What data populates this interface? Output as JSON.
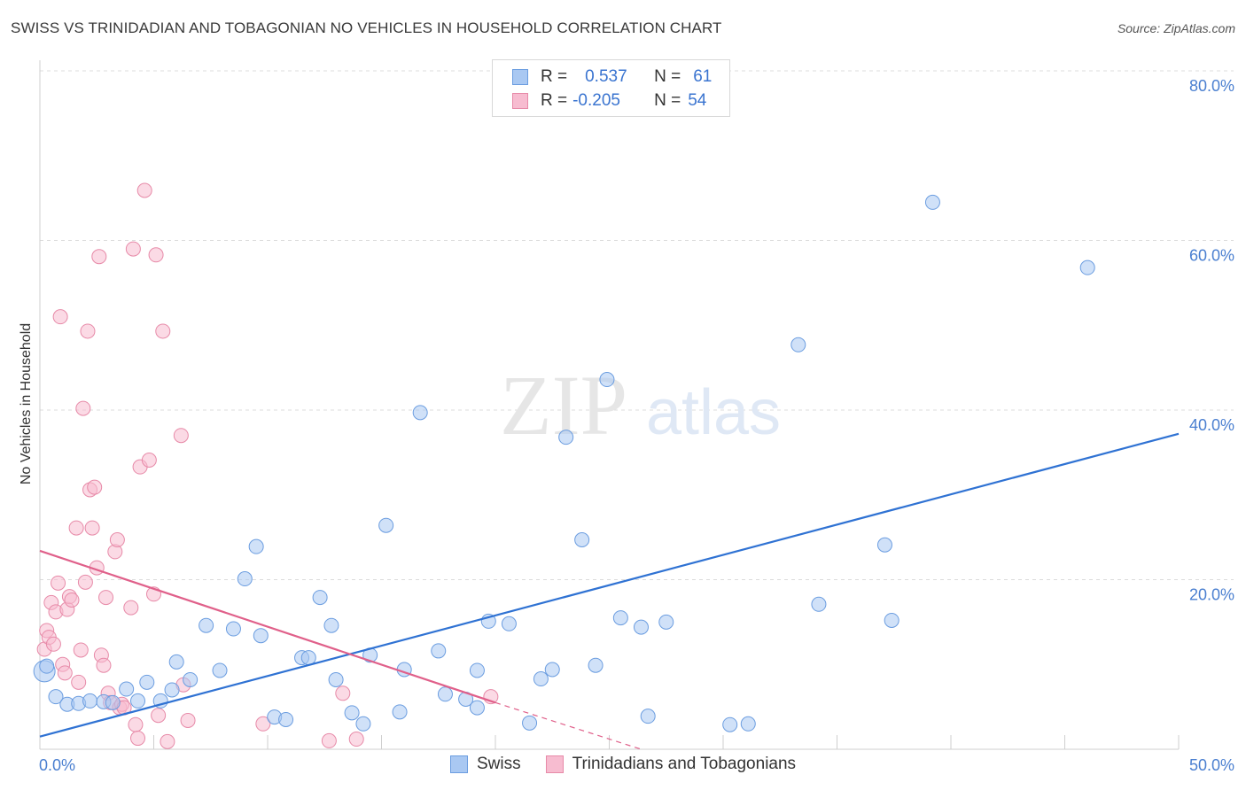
{
  "header": {
    "title": "SWISS VS TRINIDADIAN AND TOBAGONIAN NO VEHICLES IN HOUSEHOLD CORRELATION CHART",
    "source": "Source: ZipAtlas.com"
  },
  "watermark": {
    "zip": "ZIP",
    "atlas": "atlas"
  },
  "legend": {
    "rows": [
      {
        "r_label": "R =",
        "r_value": "0.537",
        "n_label": "N =",
        "n_value": "61",
        "color": "#a9c8f2",
        "border": "#6b9de0"
      },
      {
        "r_label": "R =",
        "r_value": "-0.205",
        "n_label": "N =",
        "n_value": "54",
        "color": "#f7bcd0",
        "border": "#e78aa8"
      }
    ]
  },
  "bottom_legend": {
    "swiss": "Swiss",
    "trini": "Trinidadians and Tobagonians"
  },
  "colors": {
    "swiss_fill": "#a9c8f2",
    "swiss_stroke": "#6b9de0",
    "swiss_line": "#2f72d3",
    "trini_fill": "#f7bcd0",
    "trini_stroke": "#e78aa8",
    "trini_line": "#e0608a",
    "grid": "#dcdcdc",
    "axis_text": "#4a7fd0"
  },
  "chart_data": {
    "type": "scatter",
    "title": "SWISS VS TRINIDADIAN AND TOBAGONIAN NO VEHICLES IN HOUSEHOLD CORRELATION CHART",
    "xlabel": "",
    "ylabel": "No Vehicles in Household",
    "xlim": [
      0,
      50
    ],
    "ylim": [
      0,
      80
    ],
    "x_tick_labels": [
      "0.0%",
      "50.0%"
    ],
    "y_ticks": [
      20,
      40,
      60,
      80
    ],
    "y_tick_labels": [
      "20.0%",
      "40.0%",
      "60.0%",
      "80.0%"
    ],
    "grid": true,
    "series": [
      {
        "name": "Swiss",
        "trend": {
          "x0": 0,
          "y0": 1.5,
          "x1": 50,
          "y1": 37.2
        },
        "points": [
          [
            0.2,
            9.2
          ],
          [
            0.7,
            6.2
          ],
          [
            1.2,
            5.3
          ],
          [
            1.7,
            5.4
          ],
          [
            2.2,
            5.7
          ],
          [
            2.8,
            5.6
          ],
          [
            3.2,
            5.5
          ],
          [
            3.8,
            7.1
          ],
          [
            4.3,
            5.7
          ],
          [
            4.7,
            7.9
          ],
          [
            5.3,
            5.7
          ],
          [
            5.8,
            7.0
          ],
          [
            6.0,
            10.3
          ],
          [
            6.6,
            8.2
          ],
          [
            7.3,
            14.6
          ],
          [
            7.9,
            9.3
          ],
          [
            8.5,
            14.2
          ],
          [
            9.0,
            20.1
          ],
          [
            9.5,
            23.9
          ],
          [
            9.7,
            13.4
          ],
          [
            10.3,
            3.8
          ],
          [
            10.8,
            3.5
          ],
          [
            11.5,
            10.8
          ],
          [
            11.8,
            10.8
          ],
          [
            12.3,
            17.9
          ],
          [
            12.8,
            14.6
          ],
          [
            13.0,
            8.2
          ],
          [
            13.7,
            4.3
          ],
          [
            14.2,
            3.0
          ],
          [
            14.5,
            11.1
          ],
          [
            15.2,
            26.4
          ],
          [
            15.8,
            4.4
          ],
          [
            16.0,
            9.4
          ],
          [
            16.7,
            39.7
          ],
          [
            17.5,
            11.6
          ],
          [
            17.8,
            6.5
          ],
          [
            18.7,
            5.9
          ],
          [
            19.2,
            4.9
          ],
          [
            19.2,
            9.3
          ],
          [
            19.7,
            15.1
          ],
          [
            20.6,
            14.8
          ],
          [
            21.5,
            3.1
          ],
          [
            22.0,
            8.3
          ],
          [
            22.5,
            9.4
          ],
          [
            23.1,
            36.8
          ],
          [
            23.8,
            24.7
          ],
          [
            24.4,
            9.9
          ],
          [
            24.9,
            43.6
          ],
          [
            25.5,
            15.5
          ],
          [
            26.4,
            14.4
          ],
          [
            26.7,
            3.9
          ],
          [
            27.5,
            15.0
          ],
          [
            30.3,
            2.9
          ],
          [
            31.1,
            3.0
          ],
          [
            33.3,
            47.7
          ],
          [
            34.2,
            17.1
          ],
          [
            37.1,
            24.1
          ],
          [
            37.4,
            15.2
          ],
          [
            39.2,
            64.5
          ],
          [
            46.0,
            56.8
          ],
          [
            0.3,
            9.8
          ]
        ]
      },
      {
        "name": "Trinidadians and Tobagonians",
        "trend": {
          "x0": 0,
          "y0": 23.4,
          "x1": 20,
          "y1": 5.5
        },
        "trend_dashed_to": {
          "x": 26.4,
          "y": -1.5
        },
        "points": [
          [
            0.2,
            11.8
          ],
          [
            0.3,
            14.0
          ],
          [
            0.4,
            13.2
          ],
          [
            0.5,
            17.3
          ],
          [
            0.6,
            12.4
          ],
          [
            0.7,
            16.2
          ],
          [
            0.8,
            19.6
          ],
          [
            0.9,
            51.0
          ],
          [
            1.0,
            10.0
          ],
          [
            1.1,
            9.0
          ],
          [
            1.2,
            16.5
          ],
          [
            1.3,
            18.0
          ],
          [
            1.4,
            17.6
          ],
          [
            1.6,
            26.1
          ],
          [
            1.7,
            7.9
          ],
          [
            1.8,
            11.7
          ],
          [
            1.9,
            40.2
          ],
          [
            2.0,
            19.7
          ],
          [
            2.1,
            49.3
          ],
          [
            2.2,
            30.6
          ],
          [
            2.3,
            26.1
          ],
          [
            2.4,
            30.9
          ],
          [
            2.5,
            21.4
          ],
          [
            2.6,
            58.1
          ],
          [
            2.7,
            11.1
          ],
          [
            2.8,
            9.9
          ],
          [
            2.9,
            17.9
          ],
          [
            3.0,
            6.6
          ],
          [
            3.1,
            5.5
          ],
          [
            3.3,
            23.3
          ],
          [
            3.4,
            24.7
          ],
          [
            3.5,
            4.9
          ],
          [
            3.6,
            5.3
          ],
          [
            3.7,
            4.9
          ],
          [
            4.0,
            16.7
          ],
          [
            4.1,
            59.0
          ],
          [
            4.2,
            2.9
          ],
          [
            4.3,
            1.3
          ],
          [
            4.4,
            33.3
          ],
          [
            4.6,
            65.9
          ],
          [
            4.8,
            34.1
          ],
          [
            5.0,
            18.3
          ],
          [
            5.1,
            58.3
          ],
          [
            5.2,
            4.0
          ],
          [
            5.4,
            49.3
          ],
          [
            5.6,
            0.9
          ],
          [
            6.2,
            37.0
          ],
          [
            6.3,
            7.6
          ],
          [
            6.5,
            3.4
          ],
          [
            9.8,
            3.0
          ],
          [
            12.7,
            1.0
          ],
          [
            13.3,
            6.6
          ],
          [
            13.9,
            1.2
          ],
          [
            19.8,
            6.2
          ]
        ]
      }
    ]
  }
}
